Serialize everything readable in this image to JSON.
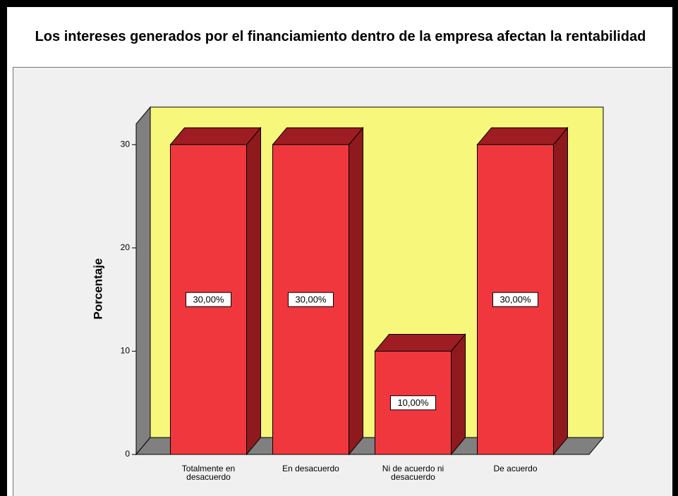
{
  "chart_data": {
    "type": "bar3d",
    "title": "Los intereses generados por el financiamiento dentro de la empresa afectan la rentabilidad",
    "ylabel": "Porcentaje",
    "categories": [
      "Totalmente en desacuerdo",
      "En desacuerdo",
      "Ni de acuerdo ni desacuerdo",
      "De acuerdo"
    ],
    "values": [
      30,
      30,
      10,
      30
    ],
    "value_labels": [
      "30,00%",
      "30,00%",
      "10,00%",
      "30,00%"
    ],
    "color": "#f0373d",
    "ylim": [
      0,
      32
    ],
    "yticks": [
      0,
      10,
      20,
      30
    ],
    "grid": false
  }
}
